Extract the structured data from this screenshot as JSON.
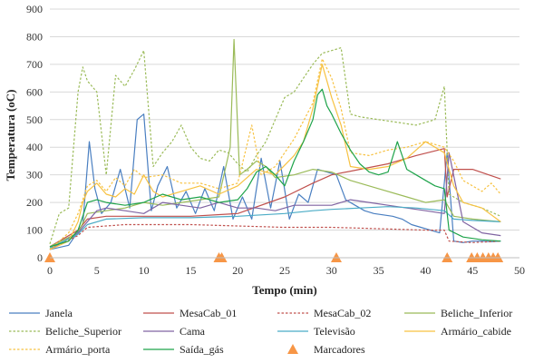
{
  "chart_data": {
    "type": "line",
    "title": "",
    "xlabel": "Tempo (min)",
    "ylabel": "Temperatura (oC)",
    "xlim": [
      0,
      50
    ],
    "ylim": [
      0,
      900
    ],
    "xticks": [
      "0",
      "5",
      "10",
      "15",
      "20",
      "25",
      "30",
      "35",
      "40",
      "45",
      "50"
    ],
    "yticks": [
      "0",
      "100",
      "200",
      "300",
      "400",
      "500",
      "600",
      "700",
      "800",
      "900"
    ],
    "grid": "horizontal",
    "legend_position": "bottom",
    "series": [
      {
        "name": "Janela",
        "color": "#4a7fc1",
        "dash": "solid",
        "x": [
          0,
          2,
          3.5,
          4.2,
          4.8,
          5.5,
          6.5,
          7.5,
          8.5,
          9.3,
          10,
          10.8,
          11.5,
          12.5,
          13.5,
          14.5,
          15.5,
          16.5,
          17.5,
          18.5,
          19.5,
          20.5,
          21.5,
          22.5,
          23.5,
          24.5,
          25.5,
          26.5,
          27.5,
          28.5,
          29.5,
          30.5,
          31.5,
          32.5,
          33.5,
          34.5,
          35.5,
          36.5,
          37.5,
          38.5,
          39.5,
          40.5,
          41.5,
          42.3,
          43,
          44,
          45,
          46,
          47,
          48
        ],
        "y": [
          30,
          45,
          120,
          420,
          250,
          160,
          200,
          320,
          180,
          500,
          520,
          170,
          260,
          330,
          180,
          240,
          160,
          250,
          170,
          330,
          140,
          220,
          140,
          360,
          180,
          350,
          140,
          230,
          200,
          320,
          310,
          300,
          210,
          190,
          170,
          160,
          155,
          150,
          140,
          120,
          110,
          100,
          90,
          380,
          60,
          55,
          60,
          60,
          58,
          60
        ]
      },
      {
        "name": "MesaCab_01",
        "color": "#c0504d",
        "dash": "solid",
        "x": [
          0,
          3,
          4,
          6,
          10,
          15,
          20,
          25,
          28,
          30,
          33,
          36,
          39,
          42,
          42.3,
          43,
          45,
          48
        ],
        "y": [
          40,
          100,
          140,
          150,
          150,
          150,
          160,
          220,
          270,
          300,
          320,
          340,
          370,
          395,
          220,
          320,
          320,
          285
        ]
      },
      {
        "name": "MesaCab_02",
        "color": "#c0504d",
        "dash": "dotted",
        "x": [
          0,
          3,
          4,
          8,
          15,
          20,
          25,
          30,
          35,
          40,
          42,
          42.5,
          45,
          48
        ],
        "y": [
          30,
          80,
          110,
          120,
          120,
          115,
          110,
          110,
          105,
          100,
          100,
          60,
          55,
          60
        ]
      },
      {
        "name": "Beliche_Inferior",
        "color": "#9bbb59",
        "dash": "solid",
        "x": [
          0,
          3,
          4,
          6,
          8,
          10,
          12,
          14,
          16,
          18,
          19.2,
          19.6,
          20.2,
          21,
          22,
          23,
          24,
          26,
          28,
          30,
          32,
          35,
          38,
          40,
          42,
          43,
          45,
          48
        ],
        "y": [
          40,
          90,
          160,
          170,
          180,
          200,
          190,
          200,
          210,
          220,
          400,
          790,
          300,
          320,
          350,
          330,
          290,
          300,
          320,
          310,
          280,
          250,
          220,
          200,
          210,
          150,
          140,
          130
        ]
      },
      {
        "name": "Beliche_Superior",
        "color": "#9bbb59",
        "dash": "dotted",
        "x": [
          0,
          1,
          2,
          3,
          3.5,
          4,
          5,
          6,
          7,
          8,
          9,
          10,
          11,
          12,
          13,
          14,
          15,
          16,
          17,
          18,
          19,
          20,
          21,
          22,
          23,
          24,
          25,
          26,
          27,
          28,
          29,
          30,
          31,
          32,
          33,
          35,
          37,
          39,
          41,
          42,
          42.5,
          44,
          46,
          48
        ],
        "y": [
          50,
          160,
          180,
          600,
          690,
          640,
          600,
          300,
          660,
          620,
          680,
          750,
          330,
          380,
          420,
          480,
          400,
          360,
          350,
          390,
          380,
          340,
          310,
          370,
          420,
          500,
          580,
          600,
          650,
          700,
          740,
          750,
          760,
          520,
          510,
          500,
          490,
          480,
          500,
          620,
          230,
          200,
          180,
          150
        ]
      },
      {
        "name": "Cama",
        "color": "#8064a2",
        "dash": "solid",
        "x": [
          0,
          3,
          4,
          5,
          6,
          8,
          10,
          12,
          14,
          16,
          18,
          20,
          22,
          24,
          26,
          28,
          30,
          32,
          34,
          36,
          38,
          40,
          42,
          42.5,
          44,
          46,
          48
        ],
        "y": [
          30,
          90,
          130,
          170,
          180,
          170,
          160,
          200,
          190,
          180,
          200,
          180,
          180,
          170,
          190,
          190,
          190,
          210,
          200,
          190,
          180,
          170,
          160,
          380,
          130,
          90,
          80
        ]
      },
      {
        "name": "Televisão",
        "color": "#4bacc6",
        "dash": "solid",
        "x": [
          0,
          3,
          4,
          6,
          10,
          15,
          20,
          25,
          28,
          30,
          33,
          36,
          39,
          42,
          43,
          45,
          48
        ],
        "y": [
          35,
          85,
          120,
          140,
          145,
          145,
          150,
          160,
          170,
          175,
          180,
          185,
          180,
          170,
          140,
          135,
          130
        ]
      },
      {
        "name": "Armário_cabide",
        "color": "#f7c242",
        "dash": "solid",
        "x": [
          0,
          2,
          3,
          3.5,
          4,
          5,
          6,
          7,
          8,
          9,
          10,
          11,
          12,
          14,
          16,
          18,
          20,
          22,
          24,
          26,
          27,
          28,
          29,
          30,
          31,
          32,
          34,
          36,
          38,
          40,
          41,
          42,
          43,
          44,
          46,
          48
        ],
        "y": [
          30,
          60,
          130,
          200,
          240,
          270,
          230,
          220,
          250,
          230,
          300,
          240,
          220,
          240,
          260,
          230,
          260,
          320,
          300,
          370,
          420,
          540,
          700,
          580,
          480,
          330,
          320,
          330,
          360,
          420,
          400,
          380,
          260,
          200,
          180,
          130
        ]
      },
      {
        "name": "Armário_porta",
        "color": "#f7c242",
        "dash": "dotted",
        "x": [
          0,
          2,
          3,
          3.5,
          4,
          5,
          6,
          7,
          8,
          9,
          10,
          12,
          14,
          16,
          18,
          20,
          21.5,
          22.5,
          24,
          26,
          28,
          29,
          30,
          31,
          32,
          34,
          36,
          38,
          40,
          42,
          43,
          44,
          46,
          47,
          48
        ],
        "y": [
          30,
          90,
          160,
          210,
          260,
          280,
          240,
          290,
          260,
          320,
          290,
          300,
          270,
          270,
          250,
          270,
          480,
          300,
          330,
          430,
          560,
          720,
          650,
          540,
          380,
          370,
          390,
          400,
          420,
          400,
          350,
          280,
          240,
          270,
          230
        ]
      },
      {
        "name": "Saída_gás",
        "color": "#1ea34a",
        "dash": "solid",
        "x": [
          0,
          2,
          3,
          3.5,
          4,
          5,
          6,
          8,
          10,
          12,
          14,
          16,
          18,
          20,
          21,
          22,
          23,
          24,
          25,
          26,
          27,
          28,
          28.5,
          29,
          29.5,
          30,
          31,
          32,
          33,
          34,
          35,
          36,
          37,
          38,
          39,
          40,
          41,
          42,
          42.5,
          44,
          46,
          48
        ],
        "y": [
          40,
          60,
          100,
          150,
          200,
          210,
          200,
          190,
          200,
          230,
          210,
          220,
          200,
          210,
          250,
          310,
          330,
          300,
          260,
          350,
          420,
          500,
          590,
          610,
          550,
          520,
          450,
          390,
          340,
          310,
          300,
          310,
          420,
          320,
          300,
          280,
          260,
          250,
          100,
          75,
          65,
          60
        ]
      }
    ],
    "markers": {
      "name": "Marcadores",
      "color": "#f79646",
      "x": [
        0,
        18,
        18.3,
        30.5,
        42.3,
        44.9,
        45.5,
        46.1,
        46.7,
        47.2,
        47.7
      ],
      "y": [
        0,
        0,
        0,
        0,
        0,
        0,
        0,
        0,
        0,
        0,
        0
      ]
    }
  }
}
